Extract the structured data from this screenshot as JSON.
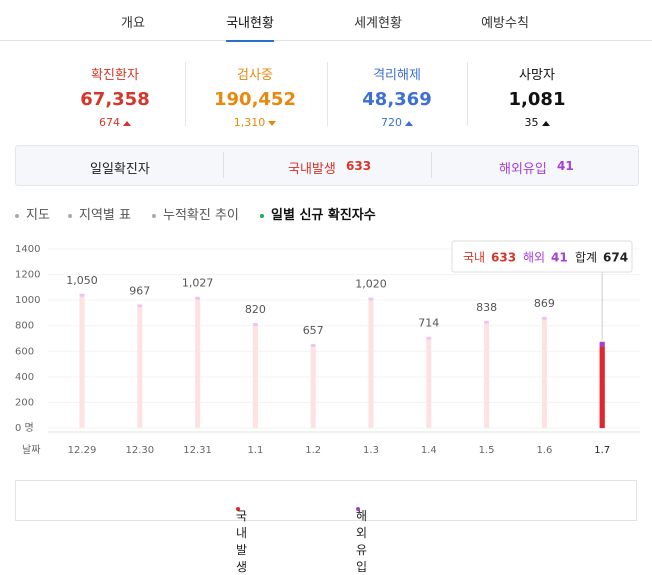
{
  "tabs": [
    "개요",
    "국내현황",
    "세계현황",
    "예방수칙"
  ],
  "active_tab": 1,
  "stats": [
    {
      "label": "확진환자",
      "value": "67,358",
      "change": "674",
      "color": "#d6352a",
      "direction": "up"
    },
    {
      "label": "검사중",
      "value": "190,452",
      "change": "1,310",
      "color": "#e8890f",
      "direction": "down"
    },
    {
      "label": "격리해제",
      "value": "48,369",
      "change": "720",
      "color": "#3d6fd6",
      "direction": "up"
    },
    {
      "label": "사망자",
      "value": "1,081",
      "change": "35",
      "color": "#111111",
      "direction": "up"
    }
  ],
  "daily": {
    "title": "일일확진자",
    "domestic_label": "국내발생",
    "domestic": 633,
    "overseas_label": "해외유입",
    "overseas": 41
  },
  "subtabs": [
    "지도",
    "지역별 표",
    "누적확진 추이",
    "일별 신규 확진자수"
  ],
  "active_subtab": 3,
  "chart_data": {
    "type": "bar",
    "x_label": "날짜",
    "categories": [
      "12.29",
      "12.30",
      "12.31",
      "1.1",
      "1.2",
      "1.3",
      "1.4",
      "1.5",
      "1.6",
      "1.7"
    ],
    "values": [
      1050,
      967,
      1027,
      820,
      657,
      1020,
      714,
      838,
      869,
      674
    ],
    "value_labels": [
      "1,050",
      "967",
      "1,027",
      "820",
      "657",
      "1,020",
      "714",
      "838",
      "869",
      null
    ],
    "color": "#fde1e3",
    "highlight_color": "#e0262f",
    "overseas_color": "#a53fd6",
    "ylim": [
      0,
      1400
    ],
    "yticks": [
      {
        "value": 0,
        "label": "0 명"
      },
      200,
      400,
      600,
      800,
      1000,
      1200,
      1400
    ],
    "tooltip": {
      "domestic_label": "국내",
      "domestic": 633,
      "overseas_label": "해외",
      "overseas": 41,
      "total_label": "합계",
      "total": 674
    },
    "legend": [
      {
        "name": "국내발생",
        "color": "#e0262f"
      },
      {
        "name": "해외유입",
        "color": "#a53fd6"
      }
    ]
  }
}
